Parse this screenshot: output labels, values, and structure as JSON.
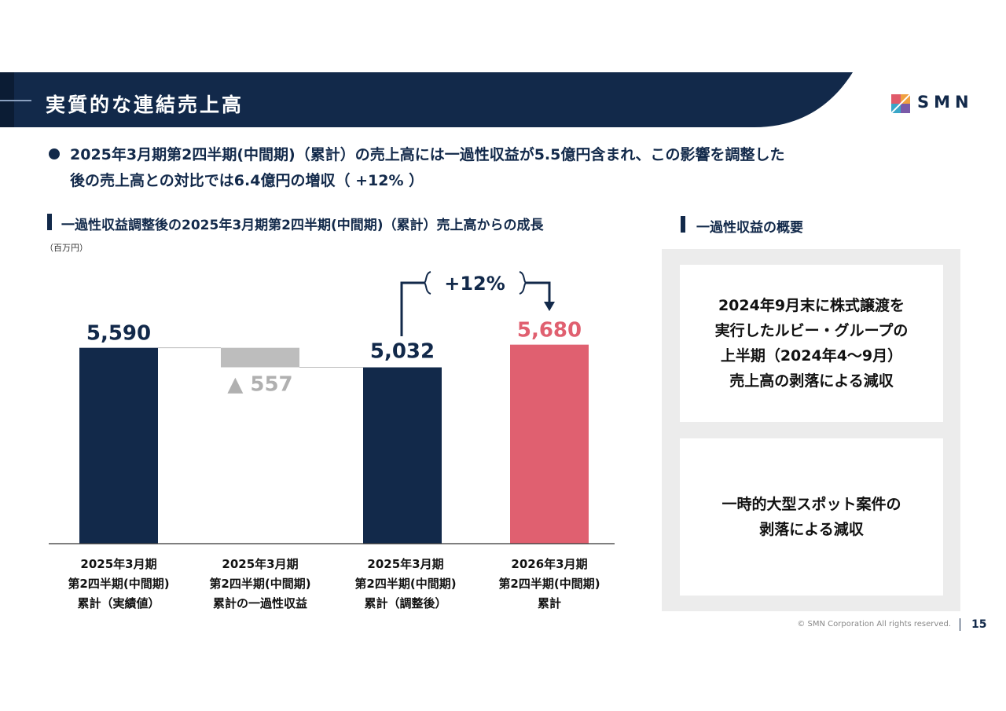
{
  "header": {
    "title": "実質的な連結売上高"
  },
  "logo": {
    "text": "SMN"
  },
  "bullet": {
    "line1": "2025年3月期第2四半期(中間期)（累計）の売上高には一過性収益が5.5億円含まれ、この影響を調整した",
    "line2": "後の売上高との対比では6.4億円の増収（ +12% ）"
  },
  "left_section": {
    "title": "一過性収益調整後の2025年3月期第2四半期(中間期)（累計）売上高からの成長",
    "unit": "（百万円）"
  },
  "right_section": {
    "title": "一過性収益の概要",
    "box1": [
      "2024年9月末に株式譲渡を",
      "実行したルビー・グループの",
      "上半期（2024年4〜9月）",
      "売上高の剥落による減収"
    ],
    "box2": [
      "一時的大型スポット案件の",
      "剥落による減収"
    ]
  },
  "chart_data": {
    "type": "bar",
    "subtype": "waterfall",
    "categories": [
      [
        "2025年3月期",
        "第2四半期(中間期)",
        "累計（実績値）"
      ],
      [
        "2025年3月期",
        "第2四半期(中間期)",
        "累計の一過性収益"
      ],
      [
        "2025年3月期",
        "第2四半期(中間期)",
        "累計（調整後）"
      ],
      [
        "2026年3月期",
        "第2四半期(中間期)",
        "累計"
      ]
    ],
    "values": [
      5590,
      -557,
      5032,
      5680
    ],
    "value_labels": [
      "5,590",
      "▲ 557",
      "5,032",
      "5,680"
    ],
    "growth_label": "+12%",
    "colors": {
      "navy": "#12294a",
      "gray": "#bdbdbd",
      "red": "#e06070",
      "label_gray": "#b0b0b0"
    }
  },
  "footer": {
    "copyright": "© SMN Corporation All rights reserved.",
    "page": "15"
  }
}
